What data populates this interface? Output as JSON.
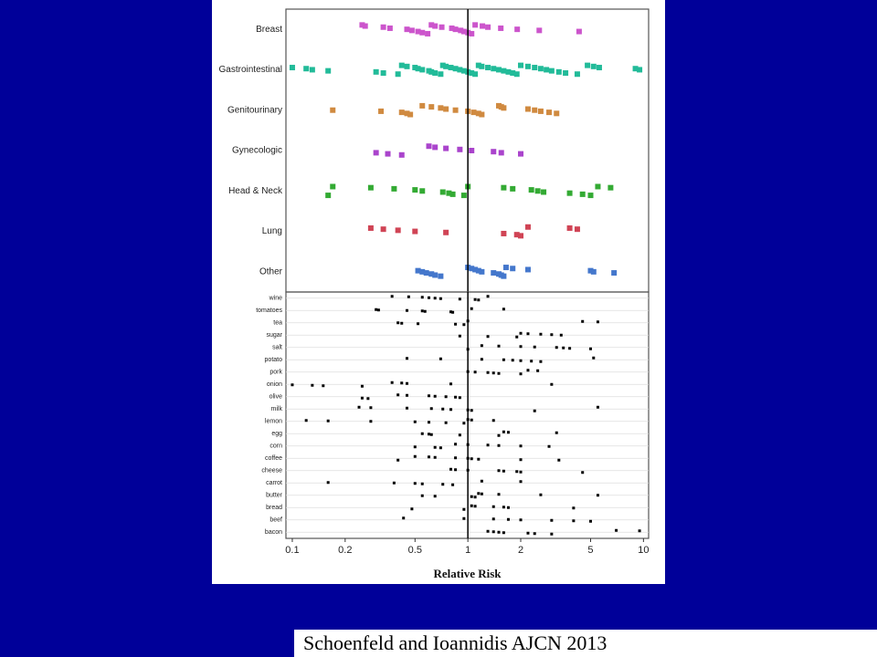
{
  "chart_data": [
    {
      "type": "strip",
      "log": true,
      "xlim": [
        0.092,
        10.7
      ],
      "reference_line": 1,
      "categories": [
        "Breast",
        "Gastrointestinal",
        "Genitourinary",
        "Gynecologic",
        "Head & Neck",
        "Lung",
        "Other"
      ],
      "colors": [
        "#cc55cc",
        "#22bb99",
        "#d08a40",
        "#aa44cc",
        "#33aa33",
        "#d04455",
        "#4477cc"
      ],
      "values": [
        [
          0.25,
          0.26,
          0.33,
          0.36,
          0.45,
          0.48,
          0.52,
          0.55,
          0.59,
          0.62,
          0.65,
          0.71,
          0.81,
          0.85,
          0.91,
          0.95,
          1.0,
          1.05,
          1.1,
          1.21,
          1.3,
          1.54,
          1.91,
          2.55,
          4.3
        ],
        [
          0.1,
          0.12,
          0.13,
          0.16,
          0.3,
          0.33,
          0.4,
          0.42,
          0.45,
          0.5,
          0.52,
          0.55,
          0.6,
          0.62,
          0.65,
          0.7,
          0.72,
          0.75,
          0.8,
          0.85,
          0.9,
          0.95,
          1.0,
          1.05,
          1.1,
          1.15,
          1.2,
          1.3,
          1.4,
          1.5,
          1.6,
          1.7,
          1.8,
          1.9,
          2.0,
          2.2,
          2.4,
          2.6,
          2.8,
          3.0,
          3.3,
          3.6,
          4.2,
          4.8,
          5.2,
          5.6,
          9.0,
          9.5
        ],
        [
          0.17,
          0.32,
          0.42,
          0.45,
          0.47,
          0.55,
          0.62,
          0.7,
          0.75,
          0.85,
          1.0,
          1.08,
          1.15,
          1.2,
          1.5,
          1.55,
          1.6,
          2.2,
          2.4,
          2.6,
          2.9,
          3.2
        ],
        [
          0.3,
          0.35,
          0.42,
          0.6,
          0.65,
          0.75,
          0.9,
          1.05,
          1.4,
          1.55,
          2.0
        ],
        [
          0.16,
          0.17,
          0.28,
          0.38,
          0.5,
          0.55,
          0.72,
          0.78,
          0.82,
          0.95,
          1.0,
          1.6,
          1.8,
          2.3,
          2.5,
          2.7,
          3.8,
          4.5,
          5.0,
          5.5,
          6.5
        ],
        [
          0.28,
          0.33,
          0.4,
          0.5,
          0.75,
          1.6,
          1.9,
          2.0,
          2.2,
          3.8,
          4.2
        ],
        [
          0.52,
          0.55,
          0.58,
          0.62,
          0.65,
          0.7,
          1.0,
          1.05,
          1.1,
          1.15,
          1.2,
          1.4,
          1.5,
          1.55,
          1.6,
          1.65,
          1.8,
          2.2,
          5.0,
          5.2,
          6.8
        ]
      ]
    },
    {
      "type": "strip",
      "log": true,
      "grid": true,
      "color": "#000000",
      "xlim": [
        0.092,
        10.7
      ],
      "reference_line": 1,
      "xticks": [
        0.1,
        0.2,
        0.5,
        1,
        2,
        5,
        10
      ],
      "xlabel": "Relative Risk",
      "categories": [
        "wine",
        "tomatoes",
        "tea",
        "sugar",
        "salt",
        "potato",
        "pork",
        "onion",
        "olive",
        "milk",
        "lemon",
        "egg",
        "corn",
        "coffee",
        "cheese",
        "carrot",
        "butter",
        "bread",
        "beef",
        "bacon"
      ],
      "values": [
        [
          0.37,
          0.46,
          0.55,
          0.6,
          0.65,
          0.7,
          0.9,
          1.1,
          1.15,
          1.3
        ],
        [
          0.3,
          0.31,
          0.45,
          0.55,
          0.57,
          0.8,
          0.82,
          1.05,
          1.6
        ],
        [
          0.4,
          0.42,
          0.52,
          0.85,
          0.95,
          1.0,
          4.5,
          5.5
        ],
        [
          0.9,
          1.3,
          1.9,
          2.0,
          2.2,
          2.6,
          3.0,
          3.4
        ],
        [
          1.0,
          1.2,
          1.5,
          2.0,
          2.4,
          3.2,
          3.5,
          3.8,
          5.0
        ],
        [
          0.45,
          0.7,
          1.2,
          1.6,
          1.8,
          2.0,
          2.3,
          2.6,
          5.2
        ],
        [
          1.0,
          1.1,
          1.3,
          1.4,
          1.5,
          2.0,
          2.2,
          2.5
        ],
        [
          0.1,
          0.13,
          0.15,
          0.25,
          0.37,
          0.42,
          0.45,
          0.8,
          3.0
        ],
        [
          0.25,
          0.27,
          0.4,
          0.45,
          0.6,
          0.65,
          0.75,
          0.85,
          0.9
        ],
        [
          0.24,
          0.28,
          0.45,
          0.62,
          0.72,
          0.8,
          1.0,
          1.05,
          2.4,
          5.5
        ],
        [
          0.12,
          0.16,
          0.28,
          0.5,
          0.6,
          0.75,
          0.95,
          1.0,
          1.05,
          1.4
        ],
        [
          0.55,
          0.6,
          0.62,
          0.9,
          1.5,
          1.6,
          1.7,
          3.2
        ],
        [
          0.5,
          0.65,
          0.7,
          0.85,
          1.0,
          1.3,
          1.5,
          2.0,
          2.9
        ],
        [
          0.4,
          0.5,
          0.6,
          0.65,
          0.85,
          1.0,
          1.05,
          1.15,
          2.0,
          3.3
        ],
        [
          0.8,
          0.85,
          1.0,
          1.5,
          1.6,
          1.9,
          2.0,
          4.5
        ],
        [
          0.16,
          0.38,
          0.5,
          0.55,
          0.72,
          0.82,
          1.2,
          2.0
        ],
        [
          0.55,
          0.65,
          1.05,
          1.1,
          1.15,
          1.2,
          1.5,
          2.6,
          5.5
        ],
        [
          0.48,
          0.95,
          1.05,
          1.1,
          1.4,
          1.6,
          1.7,
          4.0
        ],
        [
          0.43,
          0.95,
          1.4,
          1.7,
          2.0,
          3.0,
          4.0,
          5.0
        ],
        [
          1.3,
          1.4,
          1.5,
          1.6,
          2.2,
          2.4,
          3.0,
          7.0,
          9.5
        ]
      ]
    }
  ],
  "citation": "Schoenfeld and Ioannidis AJCN 2013"
}
